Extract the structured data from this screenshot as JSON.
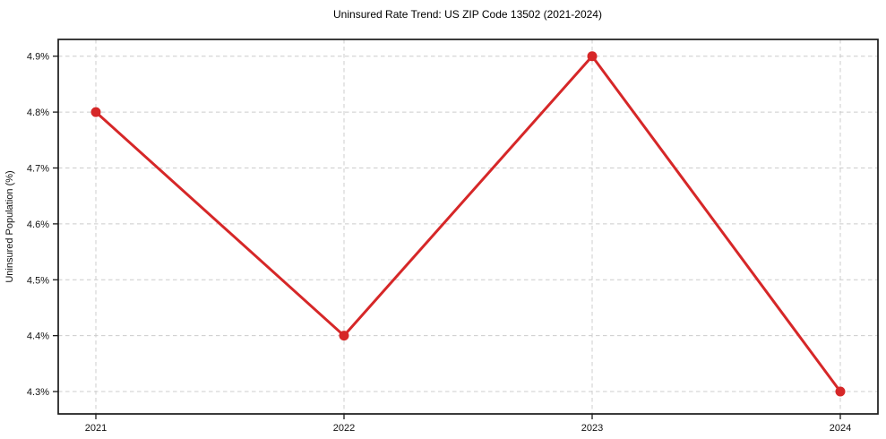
{
  "chart_data": {
    "type": "line",
    "title": "Uninsured Rate Trend: US ZIP Code 13502 (2021-2024)",
    "xlabel": "",
    "ylabel": "Uninsured Population (%)",
    "categories": [
      "2021",
      "2022",
      "2023",
      "2024"
    ],
    "values": [
      4.8,
      4.4,
      4.9,
      4.3
    ],
    "yticks": [
      4.3,
      4.4,
      4.5,
      4.6,
      4.7,
      4.8,
      4.9
    ],
    "ytick_labels": [
      "4.3%",
      "4.4%",
      "4.5%",
      "4.6%",
      "4.7%",
      "4.8%",
      "4.9%"
    ],
    "ylim": [
      4.26,
      4.93
    ],
    "grid": true,
    "grid_style": "dashed",
    "legend": false,
    "line_color": "#d62728",
    "marker": "circle",
    "grid_color": "#cccccc",
    "frame_color": "#1a1a1a",
    "background": "#ffffff"
  }
}
